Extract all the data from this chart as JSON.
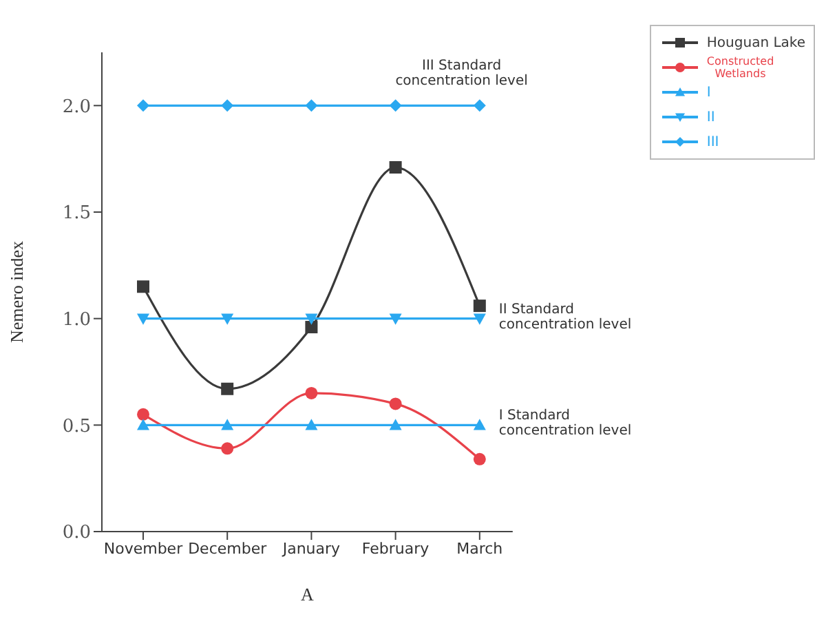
{
  "chart_data": {
    "type": "line",
    "xlabel": "A",
    "ylabel": "Nemero index",
    "categories": [
      "November",
      "December",
      "January",
      "February",
      "March"
    ],
    "series": [
      {
        "name": "Houguan Lake",
        "color": "#3a3a3a",
        "marker": "square",
        "values": [
          1.15,
          0.67,
          0.96,
          1.71,
          1.06
        ]
      },
      {
        "name": "Constructed\nWetlands",
        "color": "#e8424a",
        "marker": "circle",
        "values": [
          0.55,
          0.39,
          0.65,
          0.6,
          0.34
        ]
      },
      {
        "name": "I",
        "color": "#2aa8f0",
        "marker": "triangle",
        "values": [
          0.5,
          0.5,
          0.5,
          0.5,
          0.5
        ]
      },
      {
        "name": "II",
        "color": "#2aa8f0",
        "marker": "triangle-down",
        "values": [
          1,
          1,
          1,
          1,
          1
        ]
      },
      {
        "name": "III",
        "color": "#2aa8f0",
        "marker": "diamond",
        "values": [
          2,
          2,
          2,
          2,
          2
        ]
      }
    ],
    "ylim": [
      0,
      2.25
    ],
    "yticks": [
      {
        "value": 0,
        "label": "0.0"
      },
      {
        "value": 0.5,
        "label": "0.5"
      },
      {
        "value": 1,
        "label": "1.0"
      },
      {
        "value": 1.5,
        "label": "1.5"
      },
      {
        "value": 2,
        "label": "2.0"
      }
    ],
    "annotations": [
      {
        "text": "III Standard\nconcentration level",
        "x": "February",
        "y": 2
      },
      {
        "text": "II Standard\nconcentration level",
        "x": "March",
        "y": 1
      },
      {
        "text": "I Standard\nconcentration level",
        "x": "March",
        "y": 0.5
      }
    ],
    "legend": "top right",
    "grid": false
  }
}
